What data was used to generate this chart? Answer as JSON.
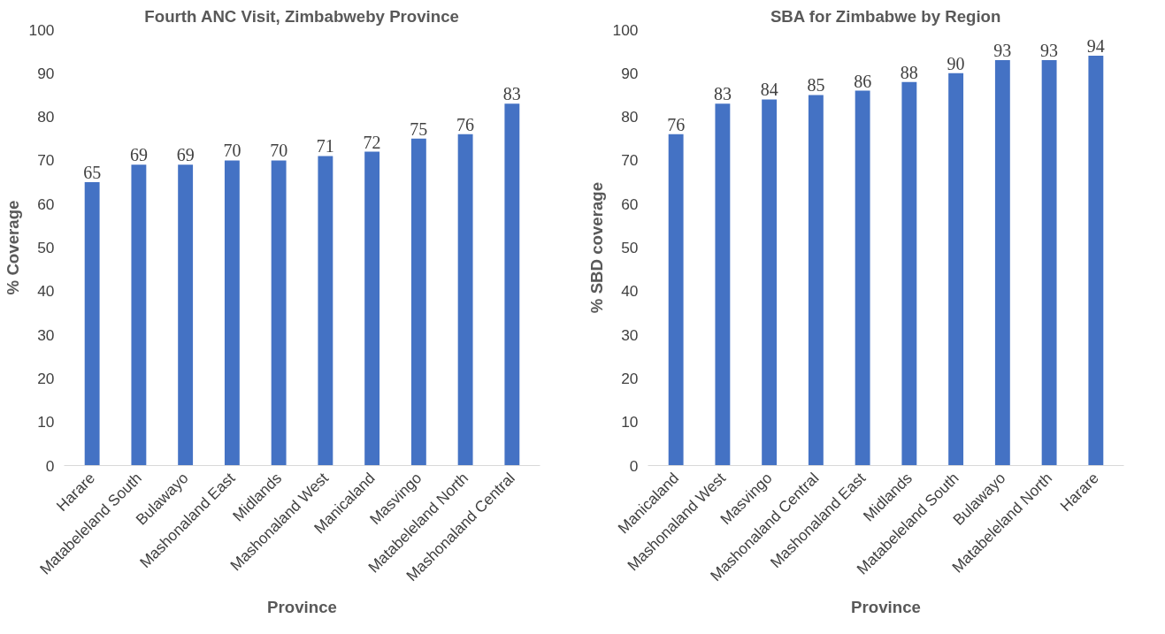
{
  "chart_data": [
    {
      "type": "bar",
      "title": "Fourth ANC Visit, Zimbabweby Province",
      "xlabel": "Province",
      "ylabel": "% Coverage",
      "categories": [
        "Harare",
        "Matabeleland South",
        "Bulawayo",
        "Mashonaland East",
        "Midlands",
        "Mashonaland West",
        "Manicaland",
        "Masvingo",
        "Matabeleland North",
        "Mashonaland Central"
      ],
      "values": [
        65,
        69,
        69,
        70,
        70,
        71,
        72,
        75,
        76,
        83
      ],
      "color": "#4472c4",
      "ylim": [
        0,
        100
      ],
      "yticks": [
        0,
        10,
        20,
        30,
        40,
        50,
        60,
        70,
        80,
        90,
        100
      ],
      "data_labels": true
    },
    {
      "type": "bar",
      "title": "SBA for Zimbabwe by Region",
      "xlabel": "Province",
      "ylabel": "% SBD coverage",
      "categories": [
        "Manicaland",
        "Mashonaland West",
        "Masvingo",
        "Mashonaland Central",
        "Mashonaland East",
        "Midlands",
        "Matabeleland South",
        "Bulawayo",
        "Matabeleland North",
        "Harare"
      ],
      "values": [
        76,
        83,
        84,
        85,
        86,
        88,
        90,
        93,
        93,
        94
      ],
      "color": "#4472c4",
      "ylim": [
        0,
        100
      ],
      "yticks": [
        0,
        10,
        20,
        30,
        40,
        50,
        60,
        70,
        80,
        90,
        100
      ],
      "data_labels": true
    }
  ]
}
